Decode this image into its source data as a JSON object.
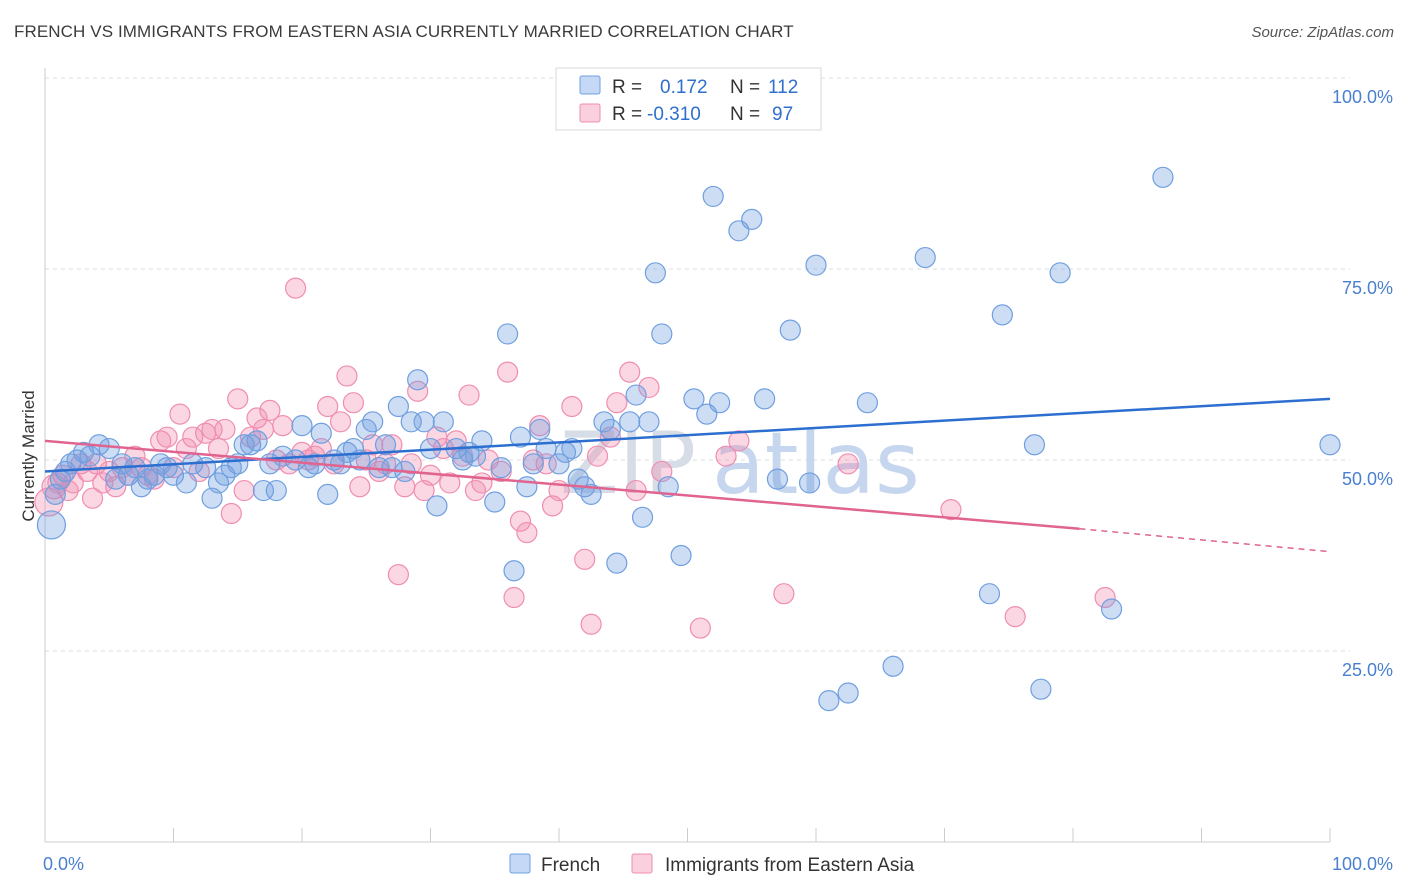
{
  "title": "FRENCH VS IMMIGRANTS FROM EASTERN ASIA CURRENTLY MARRIED CORRELATION CHART",
  "source": "Source: ZipAtlas.com",
  "watermark": {
    "zip": "ZIP",
    "atlas": "atlas"
  },
  "legend": [
    {
      "r_label": "R =",
      "r_value": "0.172",
      "n_label": "N =",
      "n_value": "112"
    },
    {
      "r_label": "R =",
      "r_value": "-0.310",
      "n_label": "N =",
      "n_value": "97"
    }
  ],
  "bottom_legend": [
    "French",
    "Immigrants from Eastern Asia"
  ],
  "colors": {
    "french": "#6f9fe0",
    "eastern_asia": "#f08db0",
    "french_line": "#2c6fd0",
    "eastern_asia_line": "#e0648f"
  },
  "chart_data": {
    "type": "scatter",
    "xlabel": "",
    "ylabel": "Currently Married",
    "xlim": [
      0,
      100
    ],
    "ylim": [
      0,
      100
    ],
    "x_tick_labels": [
      "0.0%",
      "100.0%"
    ],
    "y_tick_labels": [
      "100.0%",
      "75.0%",
      "50.0%",
      "25.0%"
    ],
    "y_ticks": [
      100,
      75,
      50,
      25
    ],
    "grid": true,
    "series": [
      {
        "name": "French",
        "trend": [
          [
            0,
            48.5
          ],
          [
            100,
            58.0
          ]
        ],
        "points": [
          [
            0.5,
            41.5,
            14
          ],
          [
            0.8,
            45.5,
            10
          ],
          [
            1.2,
            47.5,
            10
          ],
          [
            1.6,
            48.5,
            10
          ],
          [
            2.0,
            49.5,
            10
          ],
          [
            2.5,
            50.0,
            10
          ],
          [
            3.0,
            51.0,
            10
          ],
          [
            3.5,
            50.5,
            10
          ],
          [
            4.2,
            52.0,
            10
          ],
          [
            5.0,
            51.5,
            10
          ],
          [
            5.5,
            47.5,
            10
          ],
          [
            6.0,
            49.5,
            10
          ],
          [
            6.5,
            48.0,
            10
          ],
          [
            7.0,
            49.0,
            10
          ],
          [
            7.5,
            46.5,
            10
          ],
          [
            8.0,
            47.5,
            10
          ],
          [
            8.5,
            48.0,
            10
          ],
          [
            9.0,
            49.5,
            10
          ],
          [
            9.5,
            49.0,
            10
          ],
          [
            10.0,
            48.0,
            10
          ],
          [
            11.0,
            47.0,
            10
          ],
          [
            11.5,
            49.5,
            10
          ],
          [
            12.5,
            49.0,
            10
          ],
          [
            13.0,
            45.0,
            10
          ],
          [
            13.5,
            47.0,
            10
          ],
          [
            14.0,
            48.0,
            10
          ],
          [
            14.5,
            49.0,
            10
          ],
          [
            15.0,
            49.5,
            10
          ],
          [
            15.5,
            52.0,
            10
          ],
          [
            16.0,
            52.0,
            10
          ],
          [
            16.5,
            52.5,
            10
          ],
          [
            17.0,
            46.0,
            10
          ],
          [
            17.5,
            49.5,
            10
          ],
          [
            18.0,
            46.0,
            10
          ],
          [
            18.5,
            50.5,
            10
          ],
          [
            19.5,
            50.0,
            10
          ],
          [
            20.0,
            54.5,
            10
          ],
          [
            20.5,
            49.0,
            10
          ],
          [
            21.0,
            49.5,
            10
          ],
          [
            21.5,
            53.5,
            10
          ],
          [
            22.0,
            45.5,
            10
          ],
          [
            22.5,
            50.0,
            10
          ],
          [
            23.0,
            49.5,
            10
          ],
          [
            23.5,
            51.0,
            10
          ],
          [
            24.0,
            51.5,
            10
          ],
          [
            24.5,
            50.0,
            10
          ],
          [
            25.0,
            54.0,
            10
          ],
          [
            25.5,
            55.0,
            10
          ],
          [
            26.0,
            49.0,
            10
          ],
          [
            26.5,
            52.0,
            10
          ],
          [
            27.0,
            49.0,
            10
          ],
          [
            27.5,
            57.0,
            10
          ],
          [
            28.0,
            48.5,
            10
          ],
          [
            28.5,
            55.0,
            10
          ],
          [
            29.0,
            60.5,
            10
          ],
          [
            29.5,
            55.0,
            10
          ],
          [
            30.0,
            51.5,
            10
          ],
          [
            30.5,
            44.0,
            10
          ],
          [
            31.0,
            55.0,
            10
          ],
          [
            32.0,
            51.5,
            10
          ],
          [
            32.5,
            50.0,
            10
          ],
          [
            33.0,
            51.0,
            10
          ],
          [
            33.5,
            50.5,
            10
          ],
          [
            34.0,
            52.5,
            10
          ],
          [
            35.0,
            44.5,
            10
          ],
          [
            35.5,
            49.0,
            10
          ],
          [
            36.0,
            66.5,
            10
          ],
          [
            36.5,
            35.5,
            10
          ],
          [
            37.0,
            53.0,
            10
          ],
          [
            37.5,
            46.5,
            10
          ],
          [
            38.0,
            49.5,
            10
          ],
          [
            38.5,
            54.0,
            10
          ],
          [
            39.0,
            51.5,
            10
          ],
          [
            40.0,
            49.5,
            10
          ],
          [
            40.5,
            51.0,
            10
          ],
          [
            41.0,
            51.5,
            10
          ],
          [
            41.5,
            47.5,
            10
          ],
          [
            42.0,
            46.5,
            10
          ],
          [
            42.5,
            45.5,
            10
          ],
          [
            43.5,
            55.0,
            10
          ],
          [
            44.0,
            54.0,
            10
          ],
          [
            44.5,
            36.5,
            10
          ],
          [
            45.5,
            55.0,
            10
          ],
          [
            46.0,
            58.5,
            10
          ],
          [
            46.5,
            42.5,
            10
          ],
          [
            47.0,
            55.0,
            10
          ],
          [
            47.5,
            74.5,
            10
          ],
          [
            48.0,
            66.5,
            10
          ],
          [
            48.5,
            46.5,
            10
          ],
          [
            49.5,
            37.5,
            10
          ],
          [
            50.5,
            58.0,
            10
          ],
          [
            51.5,
            56.0,
            10
          ],
          [
            52.0,
            84.5,
            10
          ],
          [
            52.5,
            57.5,
            10
          ],
          [
            54.0,
            80.0,
            10
          ],
          [
            55.0,
            81.5,
            10
          ],
          [
            56.0,
            58.0,
            10
          ],
          [
            57.0,
            47.5,
            10
          ],
          [
            58.0,
            67.0,
            10
          ],
          [
            59.5,
            47.0,
            10
          ],
          [
            60.0,
            75.5,
            10
          ],
          [
            61.0,
            18.5,
            10
          ],
          [
            62.5,
            19.5,
            10
          ],
          [
            64.0,
            57.5,
            10
          ],
          [
            66.0,
            23.0,
            10
          ],
          [
            68.5,
            76.5,
            10
          ],
          [
            73.5,
            32.5,
            10
          ],
          [
            74.5,
            69.0,
            10
          ],
          [
            77.0,
            52.0,
            10
          ],
          [
            77.5,
            20.0,
            10
          ],
          [
            79.0,
            74.5,
            10
          ],
          [
            83.0,
            30.5,
            10
          ],
          [
            87.0,
            87.0,
            10
          ],
          [
            100.0,
            52.0,
            10
          ]
        ]
      },
      {
        "name": "Immigrants from Eastern Asia",
        "trend": [
          [
            0,
            52.5
          ],
          [
            80.5,
            41.0
          ]
        ],
        "trend_dashed": [
          [
            80.5,
            41.0
          ],
          [
            100,
            38.0
          ]
        ],
        "points": [
          [
            0.3,
            44.5,
            14
          ],
          [
            0.7,
            46.5,
            12
          ],
          [
            1.0,
            47.0,
            10
          ],
          [
            1.4,
            48.0,
            10
          ],
          [
            1.8,
            46.0,
            10
          ],
          [
            2.2,
            47.0,
            10
          ],
          [
            2.8,
            49.5,
            10
          ],
          [
            3.3,
            48.5,
            10
          ],
          [
            3.7,
            45.0,
            10
          ],
          [
            4.0,
            49.5,
            10
          ],
          [
            4.5,
            47.0,
            10
          ],
          [
            5.0,
            48.5,
            10
          ],
          [
            5.5,
            46.5,
            10
          ],
          [
            6.0,
            49.0,
            10
          ],
          [
            6.5,
            48.0,
            10
          ],
          [
            7.0,
            50.5,
            10
          ],
          [
            7.5,
            49.0,
            10
          ],
          [
            8.0,
            48.0,
            10
          ],
          [
            8.5,
            47.5,
            10
          ],
          [
            9.0,
            52.5,
            10
          ],
          [
            9.5,
            53.0,
            10
          ],
          [
            10.0,
            49.0,
            10
          ],
          [
            10.5,
            56.0,
            10
          ],
          [
            11.0,
            51.5,
            10
          ],
          [
            11.5,
            53.0,
            10
          ],
          [
            12.0,
            48.5,
            10
          ],
          [
            12.5,
            53.5,
            10
          ],
          [
            13.0,
            54.0,
            10
          ],
          [
            13.5,
            51.5,
            10
          ],
          [
            14.0,
            54.0,
            10
          ],
          [
            14.5,
            43.0,
            10
          ],
          [
            15.0,
            58.0,
            10
          ],
          [
            15.5,
            46.0,
            10
          ],
          [
            16.0,
            53.0,
            10
          ],
          [
            16.5,
            55.5,
            10
          ],
          [
            17.0,
            54.0,
            10
          ],
          [
            17.5,
            56.5,
            10
          ],
          [
            18.0,
            50.0,
            10
          ],
          [
            18.5,
            54.5,
            10
          ],
          [
            19.0,
            49.5,
            10
          ],
          [
            19.5,
            72.5,
            10
          ],
          [
            20.0,
            51.0,
            10
          ],
          [
            20.5,
            50.0,
            10
          ],
          [
            21.0,
            50.5,
            10
          ],
          [
            21.5,
            51.5,
            10
          ],
          [
            22.0,
            57.0,
            10
          ],
          [
            22.5,
            49.5,
            10
          ],
          [
            23.0,
            55.0,
            10
          ],
          [
            23.5,
            61.0,
            10
          ],
          [
            24.0,
            57.5,
            10
          ],
          [
            24.5,
            46.5,
            10
          ],
          [
            25.0,
            50.0,
            10
          ],
          [
            25.5,
            52.0,
            10
          ],
          [
            26.0,
            48.5,
            10
          ],
          [
            26.5,
            49.5,
            10
          ],
          [
            27.0,
            52.0,
            10
          ],
          [
            27.5,
            35.0,
            10
          ],
          [
            28.0,
            46.5,
            10
          ],
          [
            28.5,
            49.5,
            10
          ],
          [
            29.0,
            59.0,
            10
          ],
          [
            29.5,
            46.0,
            10
          ],
          [
            30.0,
            48.0,
            10
          ],
          [
            30.5,
            53.0,
            10
          ],
          [
            31.0,
            51.5,
            10
          ],
          [
            31.5,
            47.0,
            10
          ],
          [
            32.0,
            52.5,
            10
          ],
          [
            32.5,
            50.5,
            10
          ],
          [
            33.0,
            58.5,
            10
          ],
          [
            33.5,
            46.0,
            10
          ],
          [
            34.0,
            47.0,
            10
          ],
          [
            34.5,
            50.0,
            10
          ],
          [
            35.5,
            48.5,
            10
          ],
          [
            36.0,
            61.5,
            10
          ],
          [
            36.5,
            32.0,
            10
          ],
          [
            37.0,
            42.0,
            10
          ],
          [
            37.5,
            40.5,
            10
          ],
          [
            38.0,
            50.0,
            10
          ],
          [
            38.5,
            54.5,
            10
          ],
          [
            39.0,
            49.5,
            10
          ],
          [
            39.5,
            44.0,
            10
          ],
          [
            40.0,
            46.0,
            10
          ],
          [
            41.0,
            57.0,
            10
          ],
          [
            42.0,
            37.0,
            10
          ],
          [
            42.5,
            28.5,
            10
          ],
          [
            43.0,
            50.5,
            10
          ],
          [
            44.0,
            53.0,
            10
          ],
          [
            44.5,
            57.5,
            10
          ],
          [
            45.5,
            61.5,
            10
          ],
          [
            46.0,
            46.0,
            10
          ],
          [
            47.0,
            59.5,
            10
          ],
          [
            48.0,
            48.5,
            10
          ],
          [
            51.0,
            28.0,
            10
          ],
          [
            53.0,
            50.5,
            10
          ],
          [
            54.0,
            52.5,
            10
          ],
          [
            57.5,
            32.5,
            10
          ],
          [
            62.5,
            49.5,
            10
          ],
          [
            70.5,
            43.5,
            10
          ],
          [
            75.5,
            29.5,
            10
          ],
          [
            82.5,
            32.0,
            10
          ]
        ]
      }
    ]
  }
}
